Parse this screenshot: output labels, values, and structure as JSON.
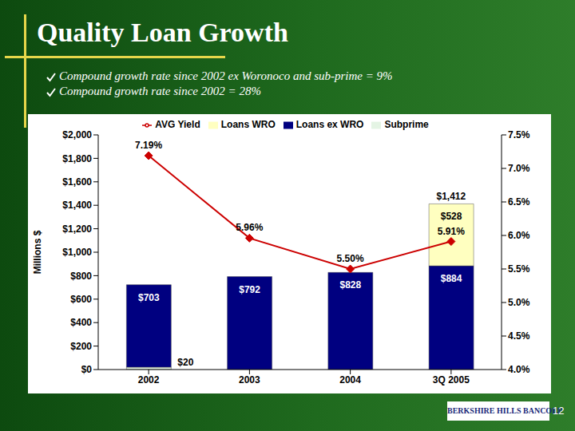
{
  "title": "Quality Loan Growth",
  "bullets": [
    "Compound growth rate since 2002 ex Woronoco and sub-prime = 9%",
    "Compound growth rate since 2002 = 28%"
  ],
  "logo": "BERKSHIRE HILLS BANCORP",
  "page": "12",
  "chart_data": {
    "type": "bar",
    "stacked": true,
    "legend": "top",
    "grid": false,
    "data_labels": true,
    "categories": [
      "2002",
      "2003",
      "2004",
      "3Q 2005"
    ],
    "y_label": "Millions $",
    "ylim": [
      0,
      2000
    ],
    "yticks": [
      {
        "value": 0,
        "label": "$0"
      },
      {
        "value": 200,
        "label": "$200"
      },
      {
        "value": 400,
        "label": "$400"
      },
      {
        "value": 600,
        "label": "$600"
      },
      {
        "value": 800,
        "label": "$800"
      },
      {
        "value": 1000,
        "label": "$1,000"
      },
      {
        "value": 1200,
        "label": "$1,200"
      },
      {
        "value": 1400,
        "label": "$1,400"
      },
      {
        "value": 1600,
        "label": "$1,600"
      },
      {
        "value": 1800,
        "label": "$1,800"
      },
      {
        "value": 2000,
        "label": "$2,000"
      }
    ],
    "y2lim": [
      4,
      7.5
    ],
    "y2ticks": [
      {
        "value": 4,
        "label": "4.0%"
      },
      {
        "value": 4.5,
        "label": "4.5%"
      },
      {
        "value": 5,
        "label": "5.0%"
      },
      {
        "value": 5.5,
        "label": "5.5%"
      },
      {
        "value": 6,
        "label": "6.0%"
      },
      {
        "value": 6.5,
        "label": "6.5%"
      },
      {
        "value": 7,
        "label": "7.0%"
      },
      {
        "value": 7.5,
        "label": "7.5%"
      }
    ],
    "series": [
      {
        "name": "Subprime",
        "type": "bar",
        "color": "#e4f4e4",
        "values": [
          20,
          null,
          null,
          null
        ],
        "value_labels": [
          "$20",
          null,
          null,
          null
        ]
      },
      {
        "name": "Loans ex WRO",
        "type": "bar",
        "color": "#000080",
        "values": [
          703,
          792,
          828,
          884
        ],
        "value_labels": [
          "$703",
          "$792",
          "$828",
          "$884"
        ]
      },
      {
        "name": "Loans WRO",
        "type": "bar",
        "color": "#ffffc0",
        "values": [
          null,
          null,
          null,
          528
        ],
        "value_labels": [
          null,
          null,
          null,
          "$528"
        ]
      },
      {
        "name": "AVG Yield",
        "type": "line",
        "axis": "y2",
        "color": "#cc0000",
        "marker": "diamond",
        "values": [
          7.19,
          5.96,
          5.5,
          5.91
        ],
        "value_labels": [
          "7.19%",
          "5.96%",
          "5.50%",
          "5.91%"
        ]
      }
    ],
    "annotations": [
      {
        "text": "$1,412",
        "x": "3Q 2005",
        "y": 1412
      }
    ]
  }
}
